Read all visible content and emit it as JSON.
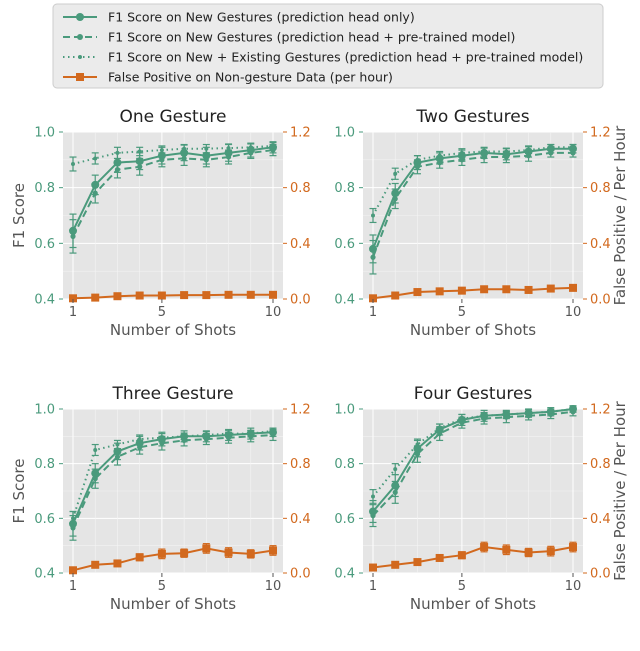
{
  "legend": {
    "entries": [
      {
        "label": "F1 Score on New Gestures (prediction head only)",
        "color": "#4a9a7c",
        "style": "solid",
        "marker": "circle"
      },
      {
        "label": "F1 Score on New Gestures (prediction head + pre-trained model)",
        "color": "#4a9a7c",
        "style": "dashed",
        "marker": "circle-small"
      },
      {
        "label": "F1 Score on New + Existing Gestures (prediction head + pre-trained model)",
        "color": "#4a9a7c",
        "style": "dotted",
        "marker": "dot"
      },
      {
        "label": "False Positive on Non-gesture Data (per hour)",
        "color": "#d2691e",
        "style": "solid",
        "marker": "square"
      }
    ]
  },
  "colors": {
    "green": "#4a9a7c",
    "orange": "#d2691e",
    "panel_bg": "#e5e5e5",
    "grid": "#ffffff"
  },
  "chart_data": [
    {
      "type": "line",
      "title": "One Gesture",
      "xlabel": "Number of Shots",
      "ylabel": "F1 Score",
      "ylabel_right": "",
      "x": [
        1,
        2,
        3,
        4,
        5,
        6,
        7,
        8,
        9,
        10
      ],
      "xticks": [
        1,
        5,
        10
      ],
      "ylim": [
        0.4,
        1.0
      ],
      "yticks": [
        "0.4",
        "0.6",
        "0.8",
        "1.0"
      ],
      "ylim_right": [
        0.0,
        1.2
      ],
      "yticks_right": [
        "0.0",
        "0.4",
        "0.8",
        "1.2"
      ],
      "grid": true,
      "series": [
        {
          "values": [
            0.645,
            0.81,
            0.89,
            0.895,
            0.915,
            0.925,
            0.915,
            0.925,
            0.935,
            0.945
          ],
          "err": [
            0.06,
            0.035,
            0.035,
            0.03,
            0.03,
            0.028,
            0.03,
            0.03,
            0.025,
            0.02
          ],
          "axis": "left",
          "style": "solid"
        },
        {
          "values": [
            0.625,
            0.78,
            0.865,
            0.875,
            0.9,
            0.905,
            0.9,
            0.91,
            0.925,
            0.935
          ],
          "err": [
            0.06,
            0.035,
            0.03,
            0.03,
            0.025,
            0.025,
            0.025,
            0.025,
            0.02,
            0.02
          ],
          "axis": "left",
          "style": "dashed"
        },
        {
          "values": [
            0.885,
            0.905,
            0.925,
            0.93,
            0.935,
            0.94,
            0.94,
            0.942,
            0.945,
            0.95
          ],
          "err": [
            0.025,
            0.02,
            0.02,
            0.015,
            0.015,
            0.015,
            0.015,
            0.015,
            0.012,
            0.012
          ],
          "axis": "left",
          "style": "dotted"
        },
        {
          "values": [
            0.005,
            0.01,
            0.02,
            0.025,
            0.025,
            0.028,
            0.028,
            0.03,
            0.03,
            0.03
          ],
          "err": [
            0.005,
            0.005,
            0.005,
            0.005,
            0.005,
            0.005,
            0.005,
            0.005,
            0.005,
            0.005
          ],
          "axis": "right",
          "style": "solid"
        }
      ]
    },
    {
      "type": "line",
      "title": "Two Gestures",
      "xlabel": "Number of Shots",
      "ylabel": "",
      "ylabel_right": "False Positive / Per Hour",
      "x": [
        1,
        2,
        3,
        4,
        5,
        6,
        7,
        8,
        9,
        10
      ],
      "xticks": [
        1,
        5,
        10
      ],
      "ylim": [
        0.4,
        1.0
      ],
      "yticks": [
        "0.4",
        "0.6",
        "0.8",
        "1.0"
      ],
      "ylim_right": [
        0.0,
        1.2
      ],
      "yticks_right": [
        "0.0",
        "0.4",
        "0.8",
        "1.2"
      ],
      "grid": true,
      "series": [
        {
          "values": [
            0.58,
            0.78,
            0.89,
            0.905,
            0.915,
            0.925,
            0.92,
            0.93,
            0.94,
            0.94
          ],
          "err": [
            0.05,
            0.035,
            0.025,
            0.02,
            0.02,
            0.02,
            0.02,
            0.02,
            0.015,
            0.015
          ],
          "axis": "left",
          "style": "solid"
        },
        {
          "values": [
            0.55,
            0.76,
            0.875,
            0.89,
            0.9,
            0.91,
            0.91,
            0.915,
            0.925,
            0.925
          ],
          "err": [
            0.06,
            0.035,
            0.025,
            0.02,
            0.02,
            0.02,
            0.02,
            0.02,
            0.015,
            0.015
          ],
          "axis": "left",
          "style": "dashed"
        },
        {
          "values": [
            0.7,
            0.85,
            0.9,
            0.915,
            0.925,
            0.93,
            0.93,
            0.935,
            0.945,
            0.945
          ],
          "err": [
            0.025,
            0.02,
            0.015,
            0.015,
            0.015,
            0.012,
            0.012,
            0.012,
            0.01,
            0.01
          ],
          "axis": "left",
          "style": "dotted"
        },
        {
          "values": [
            0.005,
            0.025,
            0.05,
            0.055,
            0.06,
            0.07,
            0.07,
            0.065,
            0.075,
            0.08
          ],
          "err": [
            0.008,
            0.008,
            0.01,
            0.01,
            0.012,
            0.012,
            0.012,
            0.012,
            0.012,
            0.012
          ],
          "axis": "right",
          "style": "solid"
        }
      ]
    },
    {
      "type": "line",
      "title": "Three Gesture",
      "xlabel": "Number of Shots",
      "ylabel": "F1 Score",
      "ylabel_right": "",
      "x": [
        1,
        2,
        3,
        4,
        5,
        6,
        7,
        8,
        9,
        10
      ],
      "xticks": [
        1,
        5,
        10
      ],
      "ylim": [
        0.4,
        1.0
      ],
      "yticks": [
        "0.4",
        "0.6",
        "0.8",
        "1.0"
      ],
      "ylim_right": [
        0.0,
        1.2
      ],
      "yticks_right": [
        "0.0",
        "0.4",
        "0.8",
        "1.2"
      ],
      "grid": true,
      "series": [
        {
          "values": [
            0.58,
            0.765,
            0.845,
            0.875,
            0.89,
            0.9,
            0.9,
            0.905,
            0.91,
            0.915
          ],
          "err": [
            0.045,
            0.035,
            0.03,
            0.025,
            0.025,
            0.02,
            0.02,
            0.02,
            0.02,
            0.015
          ],
          "axis": "left",
          "style": "solid"
        },
        {
          "values": [
            0.565,
            0.745,
            0.825,
            0.86,
            0.875,
            0.885,
            0.89,
            0.895,
            0.9,
            0.905
          ],
          "err": [
            0.045,
            0.035,
            0.03,
            0.025,
            0.025,
            0.02,
            0.02,
            0.02,
            0.02,
            0.02
          ],
          "axis": "left",
          "style": "dashed"
        },
        {
          "values": [
            0.6,
            0.85,
            0.87,
            0.89,
            0.895,
            0.9,
            0.905,
            0.91,
            0.91,
            0.92
          ],
          "err": [
            0.025,
            0.02,
            0.015,
            0.015,
            0.015,
            0.012,
            0.012,
            0.012,
            0.012,
            0.01
          ],
          "axis": "left",
          "style": "dotted"
        },
        {
          "values": [
            0.02,
            0.06,
            0.07,
            0.115,
            0.14,
            0.145,
            0.18,
            0.15,
            0.14,
            0.165
          ],
          "err": [
            0.01,
            0.015,
            0.02,
            0.025,
            0.035,
            0.03,
            0.035,
            0.035,
            0.03,
            0.035
          ],
          "axis": "right",
          "style": "solid"
        }
      ]
    },
    {
      "type": "line",
      "title": "Four Gestures",
      "xlabel": "Number of Shots",
      "ylabel": "",
      "ylabel_right": "False Positive / Per Hour",
      "x": [
        1,
        2,
        3,
        4,
        5,
        6,
        7,
        8,
        9,
        10
      ],
      "xticks": [
        1,
        5,
        10
      ],
      "ylim": [
        0.4,
        1.0
      ],
      "yticks": [
        "0.4",
        "0.6",
        "0.8",
        "1.0"
      ],
      "ylim_right": [
        0.0,
        1.2
      ],
      "yticks_right": [
        "0.0",
        "0.4",
        "0.8",
        "1.2"
      ],
      "grid": true,
      "series": [
        {
          "values": [
            0.625,
            0.72,
            0.855,
            0.925,
            0.96,
            0.975,
            0.98,
            0.985,
            0.99,
            1.0
          ],
          "err": [
            0.04,
            0.04,
            0.03,
            0.02,
            0.02,
            0.02,
            0.015,
            0.015,
            0.015,
            0.012
          ],
          "axis": "left",
          "style": "solid"
        },
        {
          "values": [
            0.61,
            0.695,
            0.835,
            0.91,
            0.95,
            0.965,
            0.97,
            0.975,
            0.98,
            0.99
          ],
          "err": [
            0.04,
            0.04,
            0.03,
            0.025,
            0.02,
            0.02,
            0.02,
            0.015,
            0.015,
            0.015
          ],
          "axis": "left",
          "style": "dashed"
        },
        {
          "values": [
            0.68,
            0.78,
            0.87,
            0.93,
            0.965,
            0.975,
            0.98,
            0.985,
            0.99,
            1.0
          ],
          "err": [
            0.025,
            0.02,
            0.02,
            0.015,
            0.015,
            0.012,
            0.012,
            0.012,
            0.01,
            0.01
          ],
          "axis": "left",
          "style": "dotted"
        },
        {
          "values": [
            0.04,
            0.06,
            0.08,
            0.11,
            0.13,
            0.19,
            0.17,
            0.15,
            0.16,
            0.19
          ],
          "err": [
            0.01,
            0.012,
            0.015,
            0.02,
            0.025,
            0.035,
            0.035,
            0.03,
            0.035,
            0.035
          ],
          "axis": "right",
          "style": "solid"
        }
      ]
    }
  ]
}
